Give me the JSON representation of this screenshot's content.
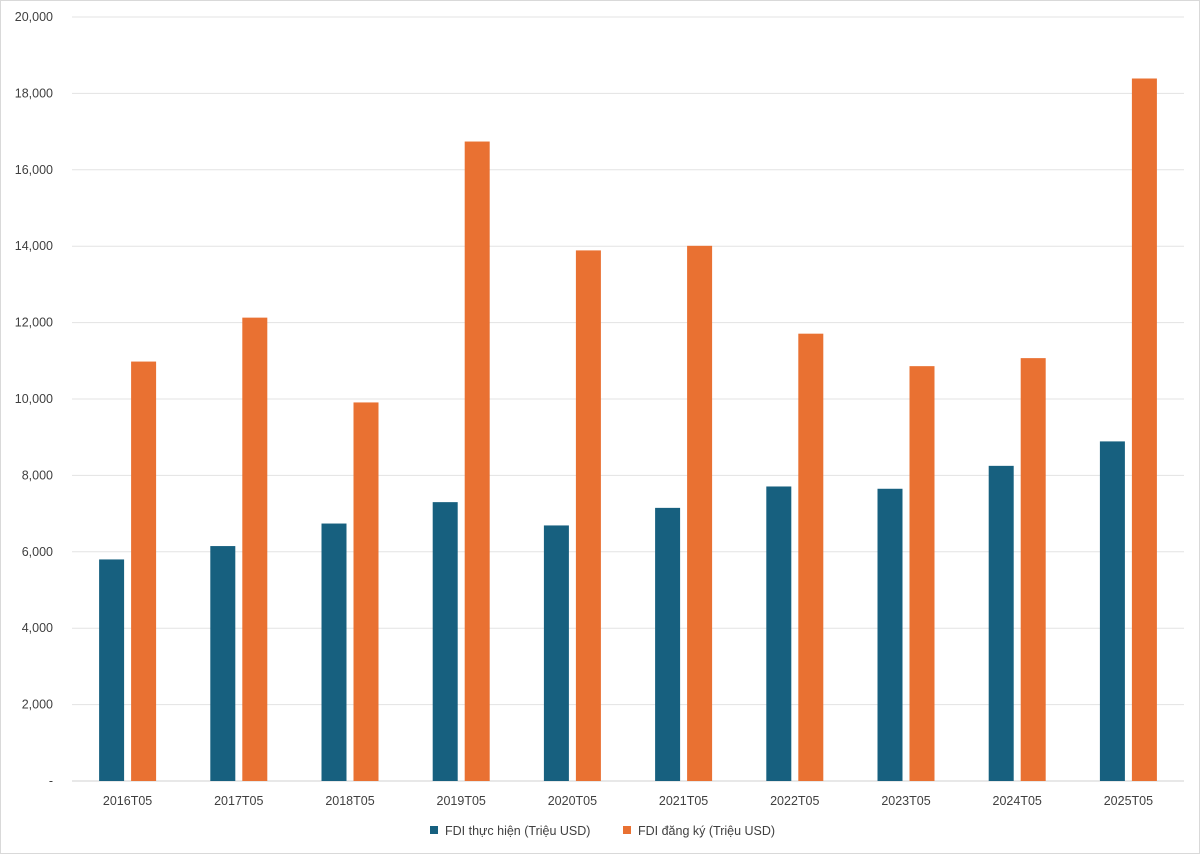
{
  "chart_data": {
    "type": "bar",
    "categories": [
      "2016T05",
      "2017T05",
      "2018T05",
      "2019T05",
      "2020T05",
      "2021T05",
      "2022T05",
      "2023T05",
      "2024T05",
      "2025T05"
    ],
    "series": [
      {
        "name": "FDI thực hiện (Triệu USD)",
        "color": "#17607f",
        "values": [
          5800,
          6150,
          6740,
          7300,
          6690,
          7150,
          7710,
          7650,
          8250,
          8890
        ]
      },
      {
        "name": "FDI đăng ký (Triệu USD)",
        "color": "#e97132",
        "values": [
          10980,
          12130,
          9910,
          16740,
          13890,
          14010,
          11710,
          10860,
          11070,
          18390
        ]
      }
    ],
    "ylim": [
      0,
      20000
    ],
    "yticks": [
      0,
      2000,
      4000,
      6000,
      8000,
      10000,
      12000,
      14000,
      16000,
      18000,
      20000
    ],
    "ytick_labels": [
      "-",
      "2,000",
      "4,000",
      "6,000",
      "8,000",
      "10,000",
      "12,000",
      "14,000",
      "16,000",
      "18,000",
      "20,000"
    ],
    "grid": true,
    "legend_position": "bottom",
    "title": "",
    "xlabel": "",
    "ylabel": ""
  }
}
